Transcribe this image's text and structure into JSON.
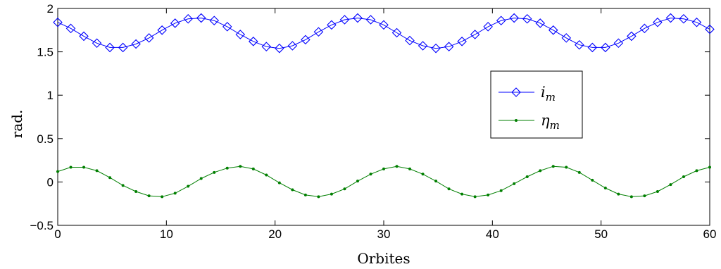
{
  "chart_data": {
    "type": "line",
    "xlabel": "Orbites",
    "ylabel": "rad.",
    "xlim": [
      0,
      60
    ],
    "ylim": [
      -0.5,
      2
    ],
    "x_ticks": [
      "0",
      "10",
      "20",
      "30",
      "40",
      "50",
      "60"
    ],
    "y_ticks": [
      "−0.5",
      "0",
      "0.5",
      "1",
      "1.5",
      "2"
    ],
    "grid": false,
    "legend_position": "right",
    "series": [
      {
        "name": "i_m",
        "legend_base": "i",
        "legend_sub": "m",
        "color": "#0000ff",
        "marker": "diamond",
        "x": [
          0,
          1.2,
          2.4,
          3.6,
          4.8,
          6.0,
          7.2,
          8.4,
          9.6,
          10.8,
          12.0,
          13.2,
          14.4,
          15.6,
          16.8,
          18.0,
          19.2,
          20.4,
          21.6,
          22.8,
          24.0,
          25.2,
          26.4,
          27.6,
          28.8,
          30.0,
          31.2,
          32.4,
          33.6,
          34.8,
          36.0,
          37.2,
          38.4,
          39.6,
          40.8,
          42.0,
          43.2,
          44.4,
          45.6,
          46.8,
          48.0,
          49.2,
          50.4,
          51.6,
          52.8,
          54.0,
          55.2,
          56.4,
          57.6,
          58.8,
          60.0
        ],
        "y": [
          1.84,
          1.77,
          1.68,
          1.6,
          1.55,
          1.55,
          1.59,
          1.66,
          1.75,
          1.83,
          1.88,
          1.89,
          1.86,
          1.79,
          1.7,
          1.62,
          1.56,
          1.54,
          1.57,
          1.64,
          1.73,
          1.81,
          1.87,
          1.89,
          1.87,
          1.81,
          1.72,
          1.63,
          1.57,
          1.54,
          1.56,
          1.62,
          1.7,
          1.79,
          1.86,
          1.89,
          1.88,
          1.83,
          1.75,
          1.66,
          1.58,
          1.55,
          1.55,
          1.6,
          1.68,
          1.77,
          1.84,
          1.89,
          1.88,
          1.84,
          1.76
        ]
      },
      {
        "name": "η_m",
        "legend_base": "η",
        "legend_sub": "m",
        "color": "#007f00",
        "marker": "dot",
        "x": [
          0,
          1.2,
          2.4,
          3.6,
          4.8,
          6.0,
          7.2,
          8.4,
          9.6,
          10.8,
          12.0,
          13.2,
          14.4,
          15.6,
          16.8,
          18.0,
          19.2,
          20.4,
          21.6,
          22.8,
          24.0,
          25.2,
          26.4,
          27.6,
          28.8,
          30.0,
          31.2,
          32.4,
          33.6,
          34.8,
          36.0,
          37.2,
          38.4,
          39.6,
          40.8,
          42.0,
          43.2,
          44.4,
          45.6,
          46.8,
          48.0,
          49.2,
          50.4,
          51.6,
          52.8,
          54.0,
          55.2,
          56.4,
          57.6,
          58.8,
          60.0
        ],
        "y": [
          0.12,
          0.17,
          0.17,
          0.13,
          0.05,
          -0.04,
          -0.11,
          -0.16,
          -0.17,
          -0.13,
          -0.05,
          0.04,
          0.11,
          0.16,
          0.18,
          0.15,
          0.08,
          -0.01,
          -0.09,
          -0.15,
          -0.17,
          -0.14,
          -0.08,
          0.01,
          0.09,
          0.15,
          0.18,
          0.15,
          0.09,
          0.01,
          -0.08,
          -0.14,
          -0.17,
          -0.15,
          -0.1,
          -0.02,
          0.06,
          0.13,
          0.18,
          0.17,
          0.11,
          0.02,
          -0.07,
          -0.14,
          -0.17,
          -0.16,
          -0.11,
          -0.03,
          0.06,
          0.13,
          0.17
        ]
      }
    ]
  }
}
